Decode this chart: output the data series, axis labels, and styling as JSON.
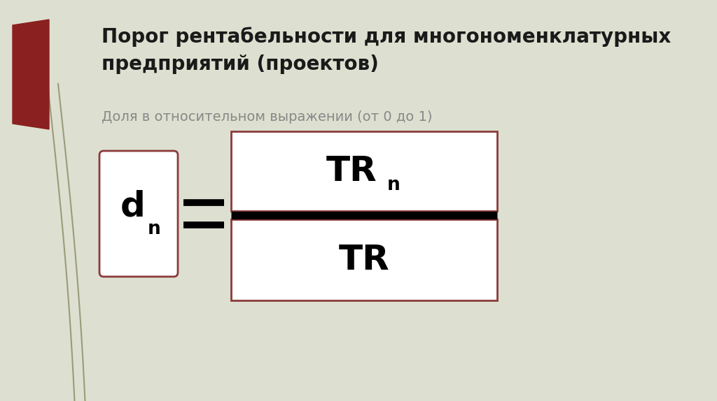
{
  "bg_color": "#dde0d0",
  "title_line1": "Порог рентабельности для многономенклатурных",
  "title_line2": "предприятий (проектов)",
  "subtitle": "Доля в относительном выражении (от 0 до 1)",
  "title_fontsize": 20,
  "subtitle_fontsize": 14,
  "formula_fontsize": 32,
  "subscript_fontsize": 19,
  "box_edge_color": "#8B3A3A",
  "box_fill": "#ffffff",
  "line_color": "#000000",
  "title_color": "#1a1a1a",
  "subtitle_color": "#888888",
  "red_shape_color": "#8B2020",
  "decor_line_color": "#9B9B7A",
  "figw": 10.24,
  "figh": 5.74,
  "dpi": 100
}
